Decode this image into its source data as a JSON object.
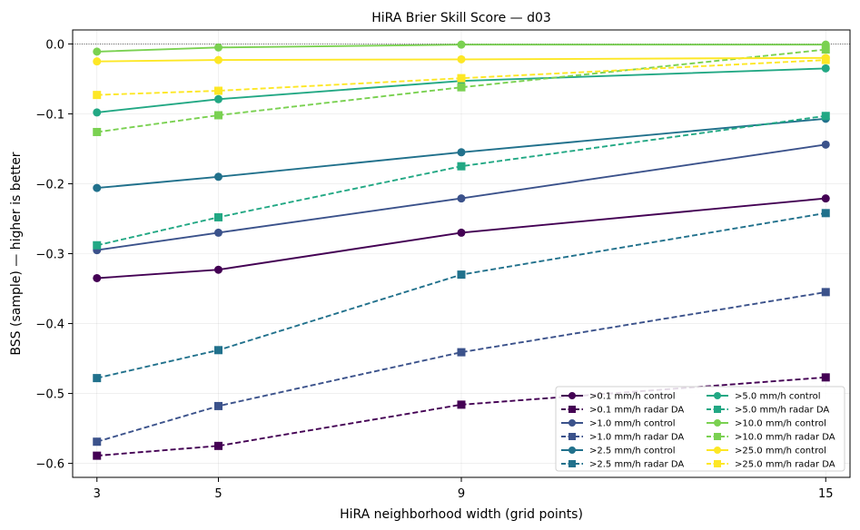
{
  "chart_data": {
    "type": "line",
    "title": "HiRA Brier Skill Score — d03",
    "xlabel": "HiRA neighborhood width (grid points)",
    "ylabel": "BSS (sample) — higher is better",
    "x": [
      3,
      5,
      9,
      15
    ],
    "xlim": [
      2.6,
      15.4
    ],
    "ylim": [
      -0.62,
      0.02
    ],
    "yticks": [
      0.0,
      -0.1,
      -0.2,
      -0.3,
      -0.4,
      -0.5,
      -0.6
    ],
    "ytick_labels": [
      "0.0",
      "−0.1",
      "−0.2",
      "−0.3",
      "−0.4",
      "−0.5",
      "−0.6"
    ],
    "xtick_labels": [
      "3",
      "5",
      "9",
      "15"
    ],
    "grid": true,
    "zero_line": true,
    "legend_position": "lower-right",
    "legend_columns": 2,
    "series": [
      {
        "name": ">0.1 mm/h control",
        "color": "#440154",
        "dash": "solid",
        "marker": "circle",
        "values": [
          -0.335,
          -0.323,
          -0.27,
          -0.221
        ]
      },
      {
        "name": ">0.1 mm/h radar DA",
        "color": "#440154",
        "dash": "dashed",
        "marker": "square",
        "values": [
          -0.589,
          -0.575,
          -0.516,
          -0.477
        ]
      },
      {
        "name": ">1.0 mm/h control",
        "color": "#3b528b",
        "dash": "solid",
        "marker": "circle",
        "values": [
          -0.295,
          -0.27,
          -0.221,
          -0.144
        ]
      },
      {
        "name": ">1.0 mm/h radar DA",
        "color": "#3b528b",
        "dash": "dashed",
        "marker": "square",
        "values": [
          -0.569,
          -0.518,
          -0.441,
          -0.355
        ]
      },
      {
        "name": ">2.5 mm/h control",
        "color": "#21718c",
        "dash": "solid",
        "marker": "circle",
        "values": [
          -0.206,
          -0.19,
          -0.155,
          -0.107
        ]
      },
      {
        "name": ">2.5 mm/h radar DA",
        "color": "#21718c",
        "dash": "dashed",
        "marker": "square",
        "values": [
          -0.478,
          -0.438,
          -0.33,
          -0.242
        ]
      },
      {
        "name": ">5.0 mm/h control",
        "color": "#22a884",
        "dash": "solid",
        "marker": "circle",
        "values": [
          -0.098,
          -0.079,
          -0.053,
          -0.035
        ]
      },
      {
        "name": ">5.0 mm/h radar DA",
        "color": "#22a884",
        "dash": "dashed",
        "marker": "square",
        "values": [
          -0.288,
          -0.248,
          -0.175,
          -0.103
        ]
      },
      {
        "name": ">10.0 mm/h control",
        "color": "#7ad151",
        "dash": "solid",
        "marker": "circle",
        "values": [
          -0.011,
          -0.005,
          -0.001,
          -0.001
        ]
      },
      {
        "name": ">10.0 mm/h radar DA",
        "color": "#7ad151",
        "dash": "dashed",
        "marker": "square",
        "values": [
          -0.126,
          -0.102,
          -0.062,
          -0.008
        ]
      },
      {
        "name": ">25.0 mm/h control",
        "color": "#fde725",
        "dash": "solid",
        "marker": "circle",
        "values": [
          -0.025,
          -0.023,
          -0.022,
          -0.02
        ]
      },
      {
        "name": ">25.0 mm/h radar DA",
        "color": "#fde725",
        "dash": "dashed",
        "marker": "square",
        "values": [
          -0.073,
          -0.067,
          -0.049,
          -0.023
        ]
      }
    ]
  }
}
